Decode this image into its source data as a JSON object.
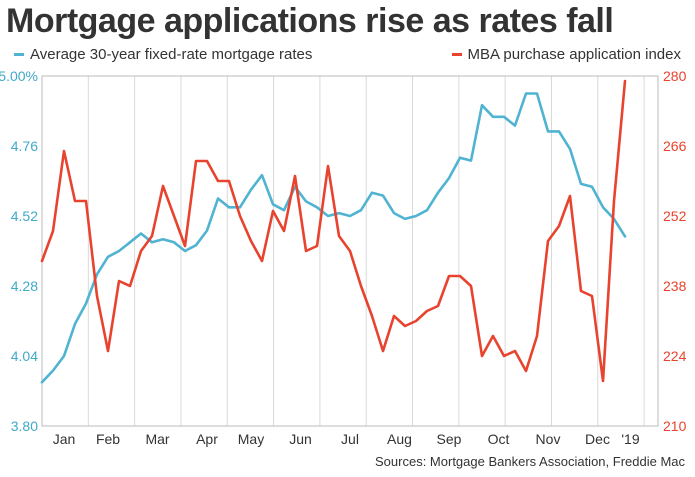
{
  "title": "Mortgage applications rise as rates fall",
  "source": "Sources: Mortgage Bankers Association, Freddie Mac",
  "colors": {
    "rates": "#4fb3d1",
    "index": "#e8432f",
    "grid": "#d8d8d8",
    "axis": "#bbbbbb"
  },
  "chart_data": {
    "type": "line",
    "x_ticks": [
      "Jan",
      "Feb",
      "Mar",
      "Apr",
      "May",
      "Jun",
      "Jul",
      "Aug",
      "Sep",
      "Oct",
      "Nov",
      "Dec",
      "'19"
    ],
    "x_tick_index": [
      2,
      6,
      10.5,
      15,
      19,
      23.5,
      28,
      32.5,
      37,
      41.5,
      46,
      50.5,
      53.5
    ],
    "x_range": [
      0,
      56
    ],
    "left_axis": {
      "range": [
        3.8,
        5.0
      ],
      "ticks": [
        "3.80",
        "4.04",
        "4.28",
        "4.52",
        "4.76",
        "5.00%"
      ],
      "tick_values": [
        3.8,
        4.04,
        4.28,
        4.52,
        4.76,
        5.0
      ]
    },
    "right_axis": {
      "range": [
        210,
        280
      ],
      "ticks": [
        "210",
        "224",
        "238",
        "252",
        "266",
        "280"
      ],
      "tick_values": [
        210,
        224,
        238,
        252,
        266,
        280
      ]
    },
    "grid": "vertical-only",
    "series": [
      {
        "name": "Average 30-year fixed-rate mortgage rates",
        "axis": "left",
        "values": [
          3.95,
          3.99,
          4.04,
          4.15,
          4.22,
          4.32,
          4.38,
          4.4,
          4.43,
          4.46,
          4.43,
          4.44,
          4.43,
          4.4,
          4.42,
          4.47,
          4.58,
          4.55,
          4.55,
          4.61,
          4.66,
          4.56,
          4.54,
          4.62,
          4.57,
          4.55,
          4.52,
          4.53,
          4.52,
          4.54,
          4.6,
          4.59,
          4.53,
          4.51,
          4.52,
          4.54,
          4.6,
          4.65,
          4.72,
          4.71,
          4.9,
          4.86,
          4.86,
          4.83,
          4.94,
          4.94,
          4.81,
          4.81,
          4.75,
          4.63,
          4.62,
          4.55,
          4.51,
          4.45
        ]
      },
      {
        "name": "MBA purchase application index",
        "axis": "right",
        "values": [
          243,
          249,
          265,
          255,
          255,
          236,
          225,
          239,
          238,
          245,
          248,
          258,
          252,
          246,
          263,
          263,
          259,
          259,
          252,
          247,
          243,
          253,
          249,
          260,
          245,
          246,
          262,
          248,
          245,
          238,
          232,
          225,
          232,
          230,
          231,
          233,
          234,
          240,
          240,
          238,
          224,
          228,
          224,
          225,
          221,
          228,
          247,
          250,
          256,
          237,
          236,
          219,
          255,
          279
        ]
      }
    ]
  }
}
